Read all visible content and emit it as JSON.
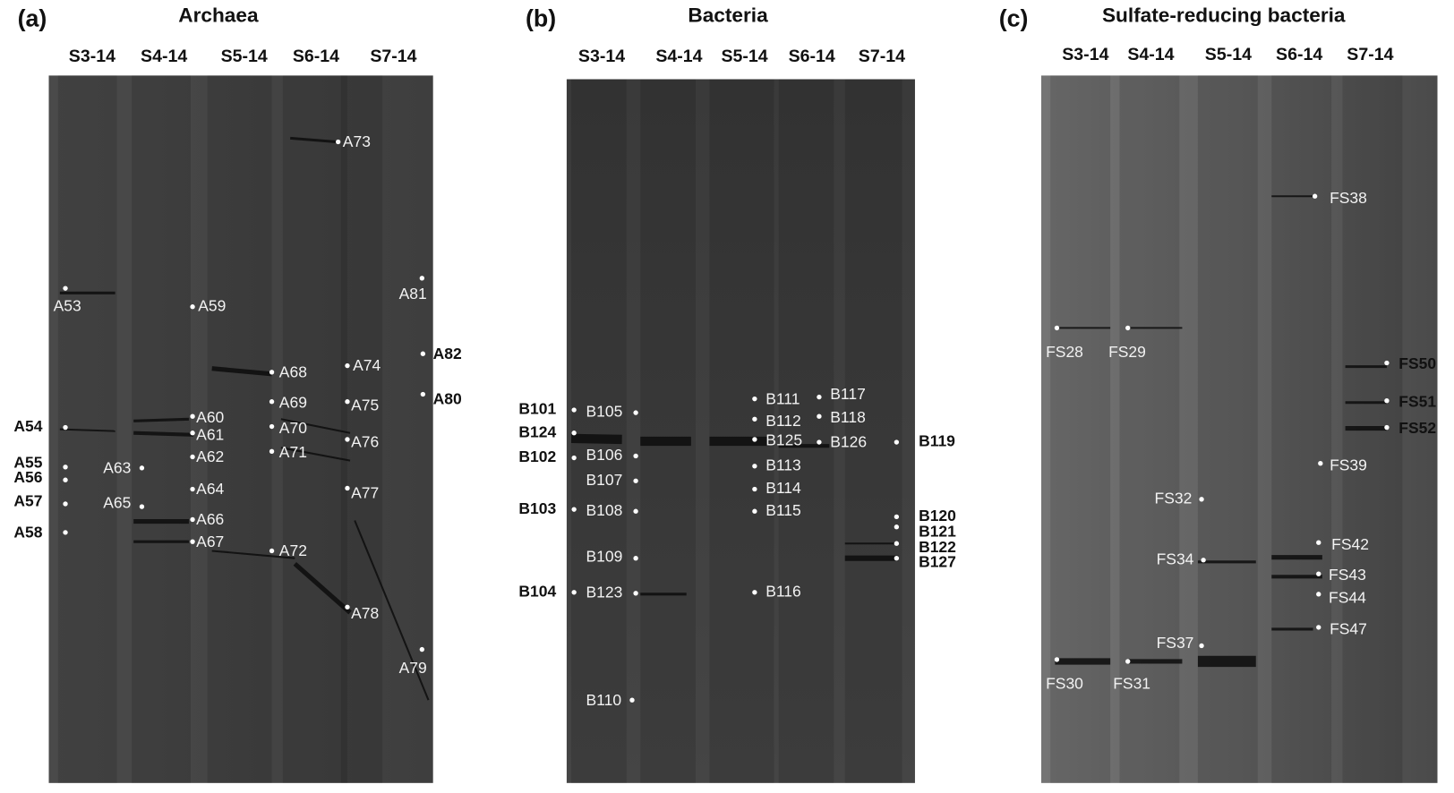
{
  "panels": [
    {
      "letter": "(a)",
      "title": "Archaea",
      "lanes": [
        "S3-14",
        "S4-14",
        "S5-14",
        "S6-14",
        "S7-14"
      ],
      "labels": [
        "A53",
        "A59",
        "A73",
        "A81",
        "A82",
        "A80",
        "A68",
        "A74",
        "A54",
        "A60",
        "A61",
        "A69",
        "A75",
        "A70",
        "A71",
        "A76",
        "A55",
        "A56",
        "A63",
        "A62",
        "A64",
        "A77",
        "A57",
        "A65",
        "A66",
        "A58",
        "A67",
        "A72",
        "A78",
        "A79"
      ]
    },
    {
      "letter": "(b)",
      "title": "Bacteria",
      "lanes": [
        "S3-14",
        "S4-14",
        "S5-14",
        "S6-14",
        "S7-14"
      ],
      "labels": [
        "B101",
        "B124",
        "B102",
        "B103",
        "B104",
        "B105",
        "B106",
        "B107",
        "B108",
        "B109",
        "B123",
        "B110",
        "B111",
        "B112",
        "B125",
        "B113",
        "B114",
        "B115",
        "B116",
        "B117",
        "B118",
        "B126",
        "B119",
        "B120",
        "B121",
        "B122",
        "B127"
      ]
    },
    {
      "letter": "(c)",
      "title": "Sulfate-reducing bacteria",
      "lanes": [
        "S3-14",
        "S4-14",
        "S5-14",
        "S6-14",
        "S7-14"
      ],
      "labels": [
        "FS38",
        "FS28",
        "FS29",
        "FS50",
        "FS51",
        "FS52",
        "FS39",
        "FS32",
        "FS42",
        "FS34",
        "FS43",
        "FS44",
        "FS47",
        "FS37",
        "FS30",
        "FS31"
      ]
    }
  ]
}
